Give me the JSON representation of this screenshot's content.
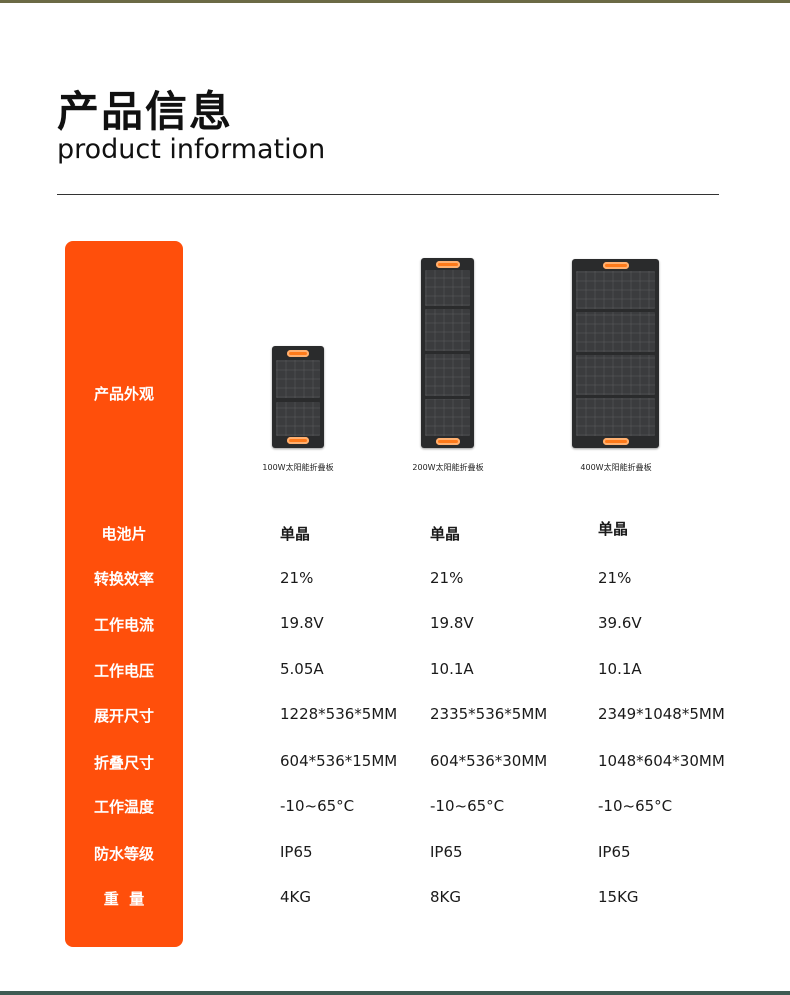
{
  "title": {
    "cn": "产品信息",
    "en": "product information"
  },
  "row_labels": {
    "appearance": "产品外观",
    "cell_type": "电池片",
    "efficiency": "转换效率",
    "current": "工作电流",
    "voltage": "工作电压",
    "unfolded": "展开尺寸",
    "folded": "折叠尺寸",
    "temperature": "工作温度",
    "waterproof": "防水等级",
    "weight": "重  量"
  },
  "products": [
    {
      "caption": "100W太阳能折叠板",
      "cell_type": "单晶",
      "efficiency": "21%",
      "current": "19.8V",
      "voltage": "5.05A",
      "unfolded": "1228*536*5MM",
      "folded": "604*536*15MM",
      "temperature": "-10~65°C",
      "waterproof": "IP65",
      "weight": "4KG"
    },
    {
      "caption": "200W太阳能折叠板",
      "cell_type": "单晶",
      "efficiency": "21%",
      "current": "19.8V",
      "voltage": "10.1A",
      "unfolded": "2335*536*5MM",
      "folded": "604*536*30MM",
      "temperature": "-10~65°C",
      "waterproof": "IP65",
      "weight": "8KG"
    },
    {
      "caption": "400W太阳能折叠板",
      "cell_type": "单晶",
      "efficiency": "21%",
      "current": "39.6V",
      "voltage": "10.1A",
      "unfolded": "2349*1048*5MM",
      "folded": "1048*604*30MM",
      "temperature": "-10~65°C",
      "waterproof": "IP65",
      "weight": "15KG"
    }
  ],
  "colors": {
    "accent": "#ff4f0b",
    "handle": "#ff7a1a",
    "panel": "#2a2b2c"
  }
}
